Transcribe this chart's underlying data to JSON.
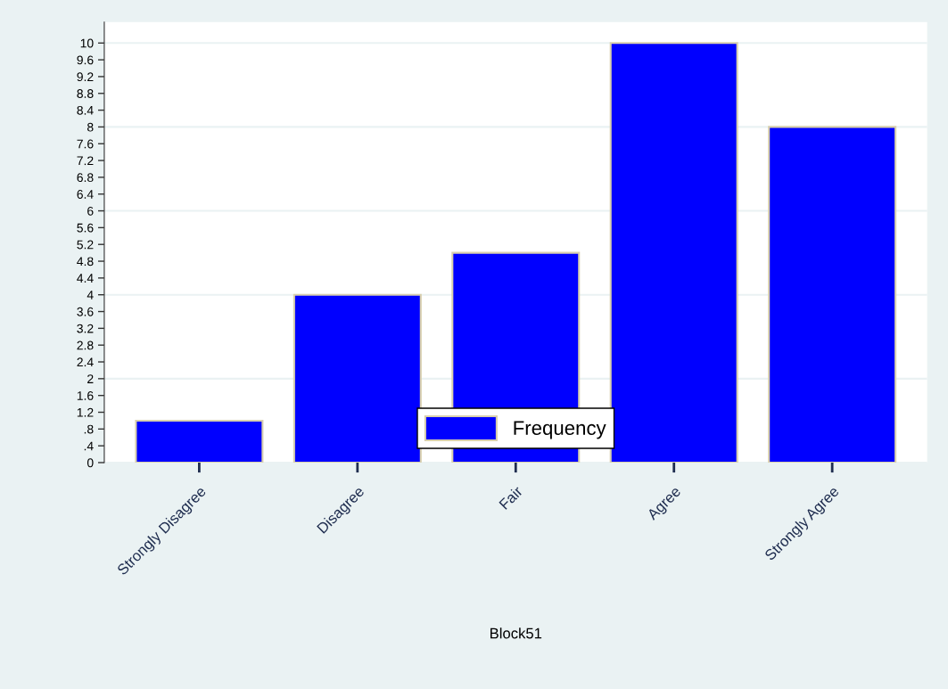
{
  "chart_data": {
    "type": "bar",
    "xlabel": "Block51",
    "categories": [
      "Strongly Disagree",
      "Disagree",
      "Fair",
      "Agree",
      "Strongly Agree"
    ],
    "series": [
      {
        "name": "Frequency",
        "color": "#0000ff",
        "values": [
          1,
          4,
          5,
          10,
          8
        ]
      }
    ],
    "ylim": [
      0,
      10.5
    ],
    "yticks": [
      0,
      {
        "value": 0.4,
        "label": ".4"
      },
      {
        "value": 0.8,
        "label": ".8"
      },
      {
        "value": 1.2,
        "label": "1.2"
      },
      {
        "value": 1.6,
        "label": "1.6"
      },
      2,
      {
        "value": 2.4,
        "label": "2.4"
      },
      {
        "value": 2.8,
        "label": "2.8"
      },
      {
        "value": 3.2,
        "label": "3.2"
      },
      {
        "value": 3.6,
        "label": "3.6"
      },
      4,
      {
        "value": 4.4,
        "label": "4.4"
      },
      {
        "value": 4.8,
        "label": "4.8"
      },
      {
        "value": 5.2,
        "label": "5.2"
      },
      {
        "value": 5.6,
        "label": "5.6"
      },
      6,
      {
        "value": 6.4,
        "label": "6.4"
      },
      {
        "value": 6.8,
        "label": "6.8"
      },
      {
        "value": 7.2,
        "label": "7.2"
      },
      {
        "value": 7.6,
        "label": "7.6"
      },
      8,
      {
        "value": 8.4,
        "label": "8.4"
      },
      {
        "value": 8.8,
        "label": "8.8"
      },
      {
        "value": 9.2,
        "label": "9.2"
      },
      {
        "value": 9.6,
        "label": "9.6"
      },
      10
    ],
    "grid": "y",
    "legend": "bottom"
  }
}
